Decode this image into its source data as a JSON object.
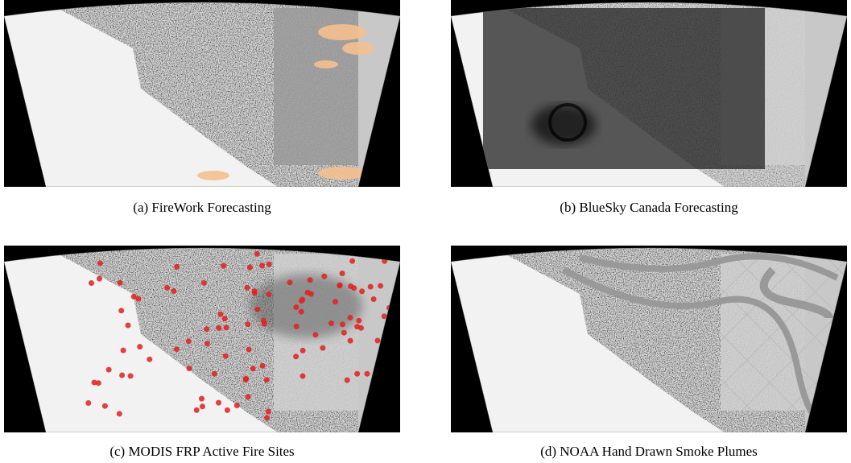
{
  "figure": {
    "panels": [
      {
        "caption": "(a) FireWork Forecasting"
      },
      {
        "caption": "(b) BlueSky Canada Forecasting"
      },
      {
        "caption": "(c) MODIS FRP Active Fire Sites"
      },
      {
        "caption": "(d) NOAA Hand Drawn Smoke Plumes"
      }
    ]
  }
}
